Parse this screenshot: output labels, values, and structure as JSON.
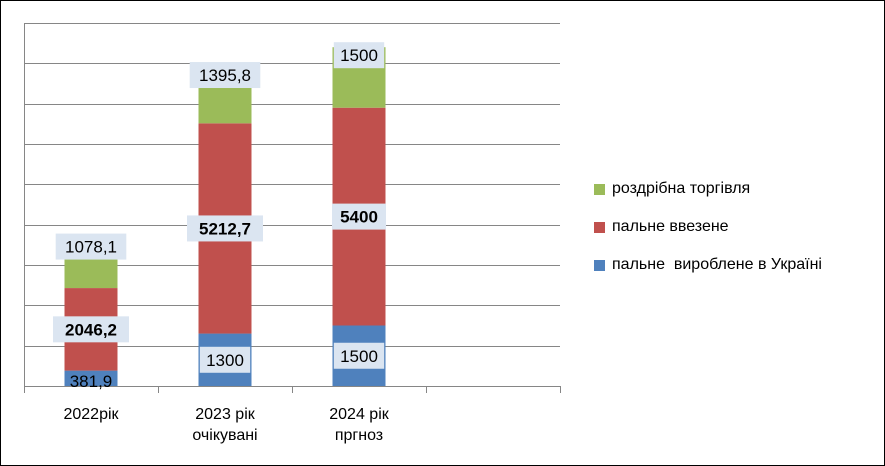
{
  "chart_data": {
    "type": "bar",
    "stacked": true,
    "categories": [
      [
        "2022рік"
      ],
      [
        "2023 рік",
        "очікувані"
      ],
      [
        "2024 рік",
        "пргноз"
      ]
    ],
    "series": [
      {
        "name": "пальне  вироблене в Україні",
        "color": "#4f81bd",
        "values": [
          381.9,
          1300,
          1500
        ],
        "labels": [
          "381,9",
          "1300",
          "1500"
        ],
        "label_bold": false
      },
      {
        "name": "пальне ввезене",
        "color": "#c0504d",
        "values": [
          2046.2,
          5212.7,
          5400
        ],
        "labels": [
          "2046,2",
          "5212,7",
          "5400"
        ],
        "label_bold": true
      },
      {
        "name": "роздрібна торгівля",
        "color": "#9bbb59",
        "values": [
          1078.1,
          1395.8,
          1500
        ],
        "labels": [
          "1078,1",
          "1395,8",
          "1500"
        ],
        "label_bold": false
      }
    ],
    "ylim": [
      0,
      9000
    ],
    "ytick_step": 1000,
    "grid": true,
    "legend_position": "right",
    "xlabel": "",
    "ylabel": "",
    "title": ""
  }
}
